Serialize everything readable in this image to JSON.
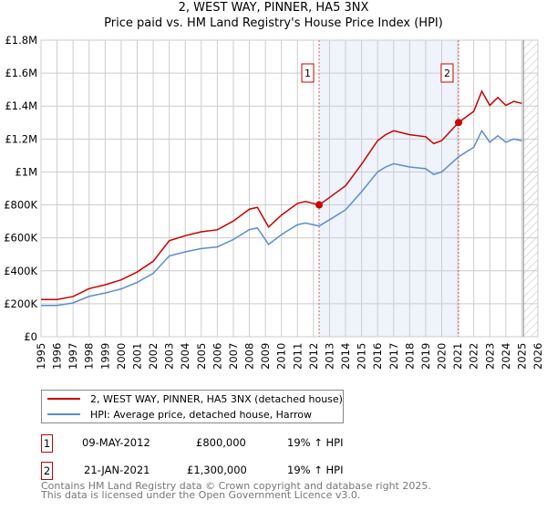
{
  "chart_data": {
    "type": "line",
    "title": "2, WEST WAY, PINNER, HA5 3NX",
    "subtitle": "Price paid vs. HM Land Registry's House Price Index (HPI)",
    "xlim": [
      1995,
      2026
    ],
    "ylim": [
      0,
      1800000
    ],
    "x_ticks": [
      "1995",
      "1996",
      "1997",
      "1998",
      "1999",
      "2000",
      "2001",
      "2002",
      "2003",
      "2004",
      "2005",
      "2006",
      "2007",
      "2008",
      "2009",
      "2010",
      "2011",
      "2012",
      "2013",
      "2014",
      "2015",
      "2016",
      "2017",
      "2018",
      "2019",
      "2020",
      "2021",
      "2022",
      "2023",
      "2024",
      "2025",
      "2026"
    ],
    "y_ticks": [
      {
        "v": 0,
        "l": "£0"
      },
      {
        "v": 200000,
        "l": "£200K"
      },
      {
        "v": 400000,
        "l": "£400K"
      },
      {
        "v": 600000,
        "l": "£600K"
      },
      {
        "v": 800000,
        "l": "£800K"
      },
      {
        "v": 1000000,
        "l": "£1M"
      },
      {
        "v": 1200000,
        "l": "£1.2M"
      },
      {
        "v": 1400000,
        "l": "£1.4M"
      },
      {
        "v": 1600000,
        "l": "£1.6M"
      },
      {
        "v": 1800000,
        "l": "£1.8M"
      }
    ],
    "grid": true,
    "shaded_range": [
      2012.35,
      2021.05
    ],
    "forecast_from": 2025.1,
    "series": [
      {
        "name": "2, WEST WAY, PINNER, HA5 3NX (detached house)",
        "color": "#cc0000",
        "x": [
          1995,
          1996,
          1997,
          1998,
          1999,
          2000,
          2001,
          2002,
          2003,
          2004,
          2005,
          2006,
          2007,
          2008,
          2008.5,
          2009.2,
          2010,
          2011,
          2011.5,
          2012.35,
          2013,
          2014,
          2015,
          2016,
          2016.5,
          2017,
          2018,
          2019,
          2019.5,
          2020,
          2021.05,
          2022,
          2022.5,
          2023,
          2023.5,
          2024,
          2024.5,
          2025
        ],
        "values": [
          226000,
          226000,
          244000,
          292000,
          315000,
          345000,
          393000,
          458000,
          583000,
          613000,
          637000,
          649000,
          702000,
          774000,
          785000,
          666000,
          738000,
          809000,
          821000,
          800000,
          845000,
          916000,
          1047000,
          1190000,
          1226000,
          1250000,
          1226000,
          1214000,
          1172000,
          1190000,
          1300000,
          1368000,
          1490000,
          1404000,
          1452000,
          1404000,
          1428000,
          1416000
        ]
      },
      {
        "name": "HPI: Average price, detached house, Harrow",
        "color": "#5b8dd0",
        "x": [
          1995,
          1996,
          1997,
          1998,
          1999,
          2000,
          2001,
          2002,
          2003,
          2004,
          2005,
          2006,
          2007,
          2008,
          2008.5,
          2009.2,
          2010,
          2011,
          2011.5,
          2012.35,
          2013,
          2014,
          2015,
          2016,
          2016.5,
          2017,
          2018,
          2019,
          2019.5,
          2020,
          2021.05,
          2022,
          2022.5,
          2023,
          2023.5,
          2024,
          2024.5,
          2025
        ],
        "values": [
          190000,
          190000,
          205000,
          245000,
          265000,
          290000,
          330000,
          385000,
          490000,
          515000,
          535000,
          545000,
          590000,
          650000,
          660000,
          560000,
          620000,
          680000,
          690000,
          672000,
          710000,
          770000,
          880000,
          1000000,
          1030000,
          1050000,
          1030000,
          1020000,
          985000,
          1000000,
          1092000,
          1150000,
          1250000,
          1180000,
          1220000,
          1180000,
          1200000,
          1190000
        ]
      }
    ],
    "sales": [
      {
        "label": "1",
        "x": 2012.35,
        "value": 800000
      },
      {
        "label": "2",
        "x": 2021.05,
        "value": 1300000
      }
    ]
  },
  "legend": {
    "items": [
      {
        "label": "2, WEST WAY, PINNER, HA5 3NX (detached house)",
        "color": "#cc0000"
      },
      {
        "label": "HPI: Average price, detached house, Harrow",
        "color": "#5b8dd0"
      }
    ]
  },
  "transactions": [
    {
      "num": "1",
      "date": "09-MAY-2012",
      "price": "£800,000",
      "hpi": "19% ↑ HPI"
    },
    {
      "num": "2",
      "date": "21-JAN-2021",
      "price": "£1,300,000",
      "hpi": "19% ↑ HPI"
    }
  ],
  "footer": {
    "line1": "Contains HM Land Registry data © Crown copyright and database right 2025.",
    "line2": "This data is licensed under the Open Government Licence v3.0."
  }
}
